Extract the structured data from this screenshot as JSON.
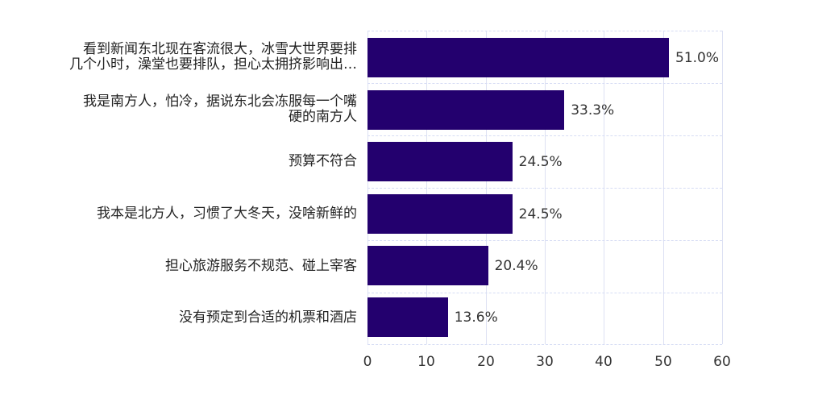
{
  "chart_data": {
    "type": "bar",
    "orientation": "horizontal",
    "title": "",
    "xlabel": "",
    "ylabel": "",
    "categories": [
      "看到新闻东北现在客流很大，冰雪大世界要排几个小时，澡堂也要排队，担心太拥挤影响出…",
      "我是南方人，怕冷，据说东北会冻服每一个嘴硬的南方人",
      "预算不符合",
      "我本是北方人，习惯了大冬天，没啥新鲜的",
      "担心旅游服务不规范、碰上宰客",
      "没有预定到合适的机票和酒店"
    ],
    "values": [
      51.0,
      33.3,
      24.5,
      24.5,
      20.4,
      13.6
    ],
    "value_labels": [
      "51.0%",
      "33.3%",
      "24.5%",
      "24.5%",
      "20.4%",
      "13.6%"
    ],
    "xlim": [
      0,
      60
    ],
    "xticks": [
      "0",
      "10",
      "20",
      "30",
      "40",
      "50",
      "60"
    ],
    "grid": true,
    "legend": null,
    "bar_color": "#23006e"
  },
  "labels": {
    "cat0_line1": "看到新闻东北现在客流很大，冰雪大世界要排",
    "cat0_line2": "几个小时，澡堂也要排队，担心太拥挤影响出…",
    "cat1_line1": "我是南方人，怕冷，据说东北会冻服每一个嘴",
    "cat1_line2": "硬的南方人",
    "cat2": "预算不符合",
    "cat3": "我本是北方人，习惯了大冬天，没啥新鲜的",
    "cat4": "担心旅游服务不规范、碰上宰客",
    "cat5": "没有预定到合适的机票和酒店"
  }
}
